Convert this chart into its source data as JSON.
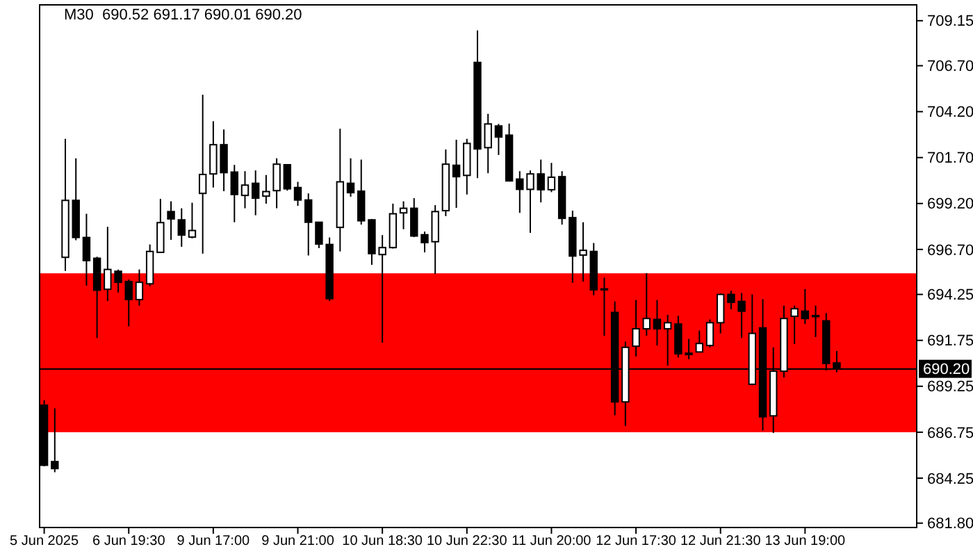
{
  "chart_data": {
    "type": "candlestick",
    "title": "M30  690.52 691.17 690.01 690.20",
    "categories": [
      "5 Jun 2025",
      null,
      null,
      null,
      null,
      null,
      null,
      null,
      "6 Jun 19:30",
      null,
      null,
      null,
      null,
      null,
      null,
      null,
      "9 Jun 17:00",
      null,
      null,
      null,
      null,
      null,
      null,
      null,
      "9 Jun 21:00",
      null,
      null,
      null,
      null,
      null,
      null,
      null,
      "10 Jun 18:30",
      null,
      null,
      null,
      null,
      null,
      null,
      null,
      "10 Jun 22:30",
      null,
      null,
      null,
      null,
      null,
      null,
      null,
      "11 Jun 20:00",
      null,
      null,
      null,
      null,
      null,
      null,
      null,
      "12 Jun 17:30",
      null,
      null,
      null,
      null,
      null,
      null,
      null,
      "12 Jun 21:30",
      null,
      null,
      null,
      null,
      null,
      null,
      null,
      "13 Jun 19:00",
      null,
      null,
      null,
      null,
      null,
      null,
      null,
      null,
      null,
      null
    ],
    "ohlc": [
      [
        688.22,
        688.5,
        684.9,
        684.95
      ],
      [
        685.15,
        688.05,
        684.57,
        684.77
      ],
      [
        696.27,
        702.72,
        695.53,
        699.37
      ],
      [
        699.37,
        701.66,
        697.2,
        697.35
      ],
      [
        697.35,
        698.64,
        694.73,
        696.09
      ],
      [
        696.22,
        696.3,
        691.88,
        694.48
      ],
      [
        694.53,
        697.93,
        693.89,
        695.61
      ],
      [
        695.51,
        695.6,
        694.35,
        694.91
      ],
      [
        694.95,
        695.06,
        692.51,
        693.97
      ],
      [
        693.97,
        695.61,
        693.64,
        694.91
      ],
      [
        694.83,
        696.97,
        694.7,
        696.59
      ],
      [
        696.54,
        699.45,
        696.52,
        698.16
      ],
      [
        698.76,
        699.32,
        697.22,
        698.36
      ],
      [
        698.31,
        698.94,
        696.84,
        697.48
      ],
      [
        697.37,
        699.24,
        697.3,
        697.73
      ],
      [
        699.75,
        705.12,
        696.47,
        700.78
      ],
      [
        700.81,
        703.68,
        700.07,
        702.4
      ],
      [
        702.4,
        703.23,
        699.87,
        700.88
      ],
      [
        700.91,
        701.3,
        698.18,
        699.69
      ],
      [
        699.64,
        700.96,
        698.94,
        700.2
      ],
      [
        700.3,
        701.0,
        698.56,
        699.49
      ],
      [
        699.6,
        700.75,
        699.19,
        699.85
      ],
      [
        699.9,
        701.66,
        698.94,
        701.34
      ],
      [
        701.31,
        701.35,
        699.9,
        700.0
      ],
      [
        700.07,
        700.38,
        699.07,
        699.39
      ],
      [
        699.39,
        699.75,
        696.37,
        698.18
      ],
      [
        698.18,
        698.2,
        696.77,
        696.99
      ],
      [
        696.97,
        697.35,
        693.89,
        694.02
      ],
      [
        697.9,
        703.27,
        696.59,
        700.38
      ],
      [
        700.3,
        701.66,
        699.57,
        699.79
      ],
      [
        699.87,
        701.59,
        698.05,
        698.26
      ],
      [
        698.31,
        698.35,
        695.86,
        696.47
      ],
      [
        696.42,
        697.48,
        691.62,
        696.8
      ],
      [
        696.8,
        699.19,
        696.75,
        698.64
      ],
      [
        698.69,
        699.32,
        697.8,
        698.94
      ],
      [
        698.94,
        699.49,
        697.37,
        697.43
      ],
      [
        697.5,
        697.67,
        696.54,
        697.07
      ],
      [
        697.12,
        699.11,
        695.36,
        698.76
      ],
      [
        698.81,
        702.14,
        698.51,
        701.34
      ],
      [
        701.28,
        702.67,
        698.96,
        700.66
      ],
      [
        700.73,
        702.72,
        699.69,
        702.47
      ],
      [
        706.88,
        708.62,
        700.58,
        702.17
      ],
      [
        702.24,
        704.08,
        700.85,
        703.53
      ],
      [
        703.42,
        703.53,
        701.84,
        702.82
      ],
      [
        702.92,
        703.55,
        700.4,
        700.43
      ],
      [
        700.53,
        700.96,
        698.69,
        699.97
      ],
      [
        699.97,
        701.0,
        697.6,
        700.81
      ],
      [
        700.81,
        701.59,
        699.26,
        699.95
      ],
      [
        699.95,
        701.41,
        699.82,
        700.63
      ],
      [
        700.66,
        700.96,
        698.05,
        698.39
      ],
      [
        698.43,
        698.81,
        694.88,
        696.34
      ],
      [
        696.39,
        698.18,
        694.95,
        696.65
      ],
      [
        696.59,
        697.05,
        694.2,
        694.5
      ],
      [
        694.55,
        695.16,
        692.0,
        694.5
      ],
      [
        693.27,
        693.87,
        687.67,
        688.4
      ],
      [
        688.4,
        691.68,
        687.09,
        691.37
      ],
      [
        691.43,
        693.95,
        690.87,
        692.38
      ],
      [
        692.38,
        695.41,
        692.0,
        692.94
      ],
      [
        692.89,
        693.95,
        691.47,
        692.38
      ],
      [
        692.38,
        693.14,
        690.37,
        692.71
      ],
      [
        692.64,
        693.09,
        690.82,
        691.02
      ],
      [
        691.05,
        691.83,
        690.72,
        690.98
      ],
      [
        691.12,
        692.28,
        691.1,
        691.58
      ],
      [
        691.47,
        692.89,
        691.37,
        692.71
      ],
      [
        692.71,
        694.3,
        692.13,
        694.25
      ],
      [
        694.25,
        694.45,
        693.44,
        693.82
      ],
      [
        693.87,
        694.33,
        691.88,
        693.34
      ],
      [
        689.36,
        694.25,
        689.3,
        692.13
      ],
      [
        692.43,
        693.99,
        686.84,
        687.59
      ],
      [
        687.64,
        691.37,
        686.71,
        690.07
      ],
      [
        690.07,
        693.64,
        689.73,
        692.94
      ],
      [
        693.06,
        693.64,
        691.55,
        693.47
      ],
      [
        693.34,
        694.55,
        692.64,
        692.94
      ],
      [
        693.1,
        693.64,
        691.93,
        693.04
      ],
      [
        692.81,
        693.24,
        690.11,
        690.49
      ],
      [
        690.52,
        691.17,
        690.01,
        690.2
      ],
      null,
      null,
      null,
      null,
      null,
      null,
      null
    ],
    "ylim": [
      681.6,
      710.05
    ],
    "yticks": [
      {
        "value": 681.8,
        "label": "681.80"
      },
      684.25,
      686.75,
      689.25,
      691.75,
      694.25,
      {
        "value": 696.7,
        "label": "696.70"
      },
      {
        "value": 699.2,
        "label": "699.20"
      },
      {
        "value": 701.7,
        "label": "701.70"
      },
      {
        "value": 704.2,
        "label": "704.20"
      },
      {
        "value": 706.7,
        "label": "706.70"
      },
      709.15
    ],
    "ref_lines": [
      {
        "axis": "y",
        "value": 690.2,
        "label": "690.20",
        "color": "#000000"
      }
    ],
    "bands": [
      {
        "axis": "y",
        "from": 686.75,
        "to": 695.4,
        "color": "#ff0000"
      }
    ]
  }
}
